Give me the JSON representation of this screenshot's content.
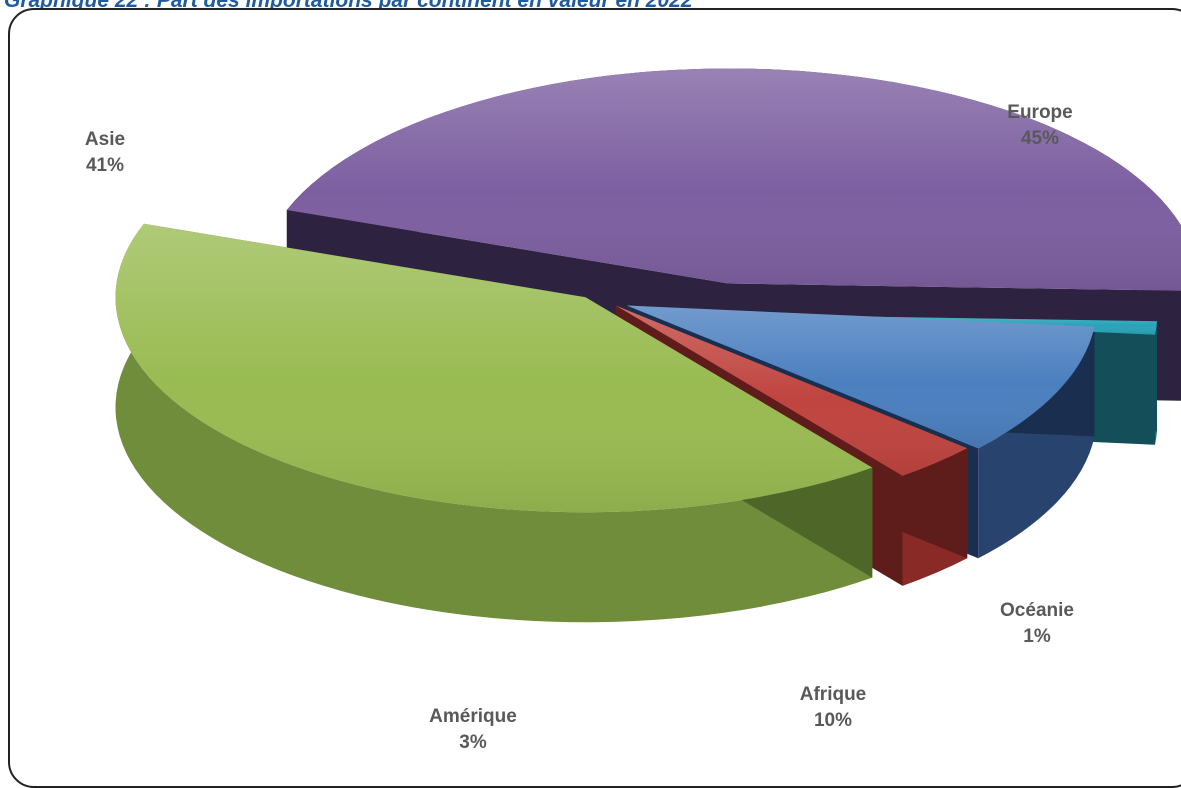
{
  "chart_data": {
    "type": "pie",
    "title": "Graphique 22 : Part des importations par continent en valeur en 2022",
    "slices": [
      {
        "name": "Europe",
        "value": 45,
        "label": "45%",
        "color": "#7c5fa0",
        "side": "#4a3866",
        "dark": "#2d2240"
      },
      {
        "name": "Océanie",
        "value": 1,
        "label": "1%",
        "color": "#2aa3b8",
        "side": "#1b6e7d",
        "dark": "#134e59"
      },
      {
        "name": "Afrique",
        "value": 10,
        "label": "10%",
        "color": "#4b7fbf",
        "side": "#28446e",
        "dark": "#1a2f4f"
      },
      {
        "name": "Amérique",
        "value": 3,
        "label": "3%",
        "color": "#c0443f",
        "side": "#8a2a27",
        "dark": "#5e1c1a"
      },
      {
        "name": "Asie",
        "value": 41,
        "label": "41%",
        "color": "#99bb52",
        "side": "#6f8d3a",
        "dark": "#4e6628"
      }
    ]
  }
}
